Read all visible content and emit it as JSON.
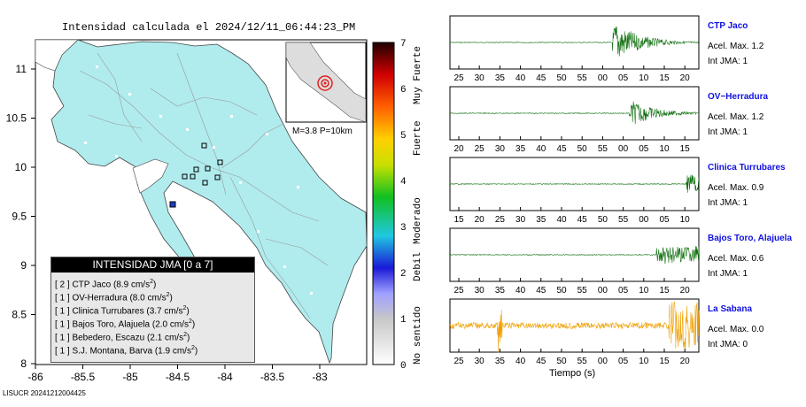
{
  "title": "Intensidad calculada el 2024/12/11_06:44:23_PM",
  "footer": "LISUCR 20241212004425",
  "map": {
    "lon_ticks": [
      "-86",
      "-85.5",
      "-85",
      "-84.5",
      "-84",
      "-83.5",
      "-83"
    ],
    "lat_ticks": [
      "11",
      "10.5",
      "10",
      "9.5",
      "9",
      "8.5",
      "8"
    ],
    "inset_caption": "M=3.8 P=10km",
    "land_color": "#b0ecee",
    "station_box_color": "#000000"
  },
  "legend": {
    "header": "INTENSIDAD JMA [0 a 7]",
    "items": [
      {
        "level": "[ 2 ]",
        "name": "CTP Jaco",
        "value": "(8.9 cm/s",
        "sup": "2",
        "close": ")"
      },
      {
        "level": "[ 1 ]",
        "name": "OV-Herradura",
        "value": "(8.0 cm/s",
        "sup": "2",
        "close": ")"
      },
      {
        "level": "[ 1 ]",
        "name": "Clinica Turrubares",
        "value": "(3.7 cm/s",
        "sup": "2",
        "close": ")"
      },
      {
        "level": "[ 1 ]",
        "name": "Bajos Toro, Alajuela",
        "value": "(2.0 cm/s",
        "sup": "2",
        "close": ")"
      },
      {
        "level": "[ 1 ]",
        "name": "Bebedero, Escazu",
        "value": "(2.1 cm/s",
        "sup": "2",
        "close": ")"
      },
      {
        "level": "[ 1 ]",
        "name": "S.J. Montana, Barva",
        "value": "(1.9 cm/s",
        "sup": "2",
        "close": ")"
      }
    ]
  },
  "colorbar": {
    "ticks": [
      "0",
      "1",
      "2",
      "3",
      "4",
      "5",
      "6",
      "7"
    ],
    "labels": [
      "No sentido",
      "Debil",
      "Moderado",
      "Fuerte",
      "Muy Fuerte"
    ]
  },
  "seismograms": {
    "xlabel": "Tiempo (s)",
    "panels": [
      {
        "name": "CTP Jaco",
        "acel": "Acel. Max. 1.2",
        "int": "Int JMA: 1",
        "ticks": [
          "25",
          "30",
          "35",
          "40",
          "45",
          "50",
          "55",
          "00",
          "05",
          "10",
          "15",
          "20"
        ],
        "color": "#107010"
      },
      {
        "name": "OV−Herradura",
        "acel": "Acel. Max. 1.2",
        "int": "Int JMA: 1",
        "ticks": [
          "20",
          "25",
          "30",
          "35",
          "40",
          "45",
          "50",
          "55",
          "00",
          "05",
          "10",
          "15"
        ],
        "color": "#107010"
      },
      {
        "name": "Clinica Turrubares",
        "acel": "Acel. Max. 0.9",
        "int": "Int JMA: 1",
        "ticks": [
          "15",
          "20",
          "25",
          "30",
          "35",
          "40",
          "45",
          "50",
          "55",
          "00",
          "05",
          "10"
        ],
        "color": "#107010"
      },
      {
        "name": "Bajos Toro, Alajuela",
        "acel": "Acel. Max. 0.6",
        "int": "Int JMA: 1",
        "ticks": [
          "25",
          "30",
          "35",
          "40",
          "45",
          "50",
          "55",
          "00",
          "05",
          "10",
          "15",
          "20"
        ],
        "color": "#107010"
      },
      {
        "name": "La Sabana",
        "acel": "Acel. Max. 0.0",
        "int": "Int JMA: 0",
        "ticks": [
          "25",
          "30",
          "35",
          "40",
          "45",
          "50",
          "55",
          "00",
          "05",
          "10",
          "15",
          "20"
        ],
        "color": "#f0a000"
      }
    ]
  },
  "chart_data": {
    "type": "line",
    "title": "Intensidad calculada el 2024/12/11_06:44:23_PM",
    "xlabel": "Tiempo (s)",
    "series": [
      {
        "name": "CTP Jaco",
        "peak_acceleration": 1.2,
        "jma_intensity": 1
      },
      {
        "name": "OV-Herradura",
        "peak_acceleration": 1.2,
        "jma_intensity": 1
      },
      {
        "name": "Clinica Turrubares",
        "peak_acceleration": 0.9,
        "jma_intensity": 1
      },
      {
        "name": "Bajos Toro, Alajuela",
        "peak_acceleration": 0.6,
        "jma_intensity": 1
      },
      {
        "name": "La Sabana",
        "peak_acceleration": 0.0,
        "jma_intensity": 0
      }
    ],
    "colorbar_range": [
      0,
      7
    ]
  }
}
